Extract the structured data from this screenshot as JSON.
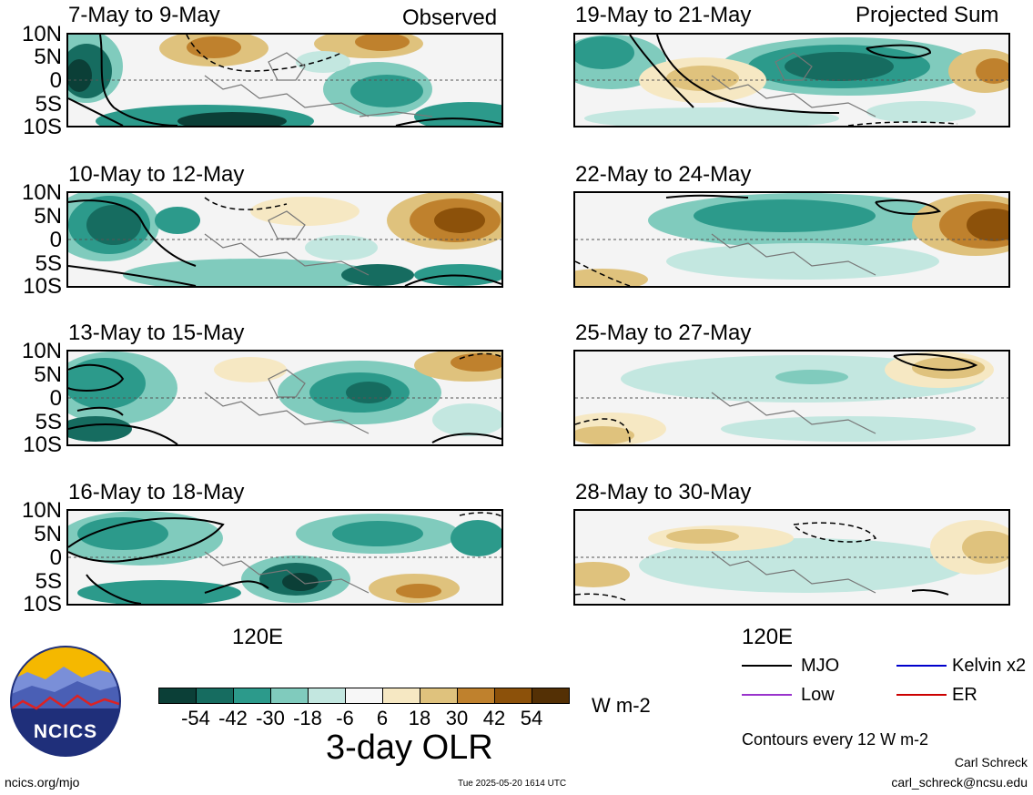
{
  "headers": {
    "observed": "Observed",
    "projected": "Projected Sum"
  },
  "panels": {
    "observed": [
      {
        "title": "7-May to 9-May"
      },
      {
        "title": "10-May to 12-May"
      },
      {
        "title": "13-May to 15-May"
      },
      {
        "title": "16-May to 18-May"
      }
    ],
    "projected": [
      {
        "title": "19-May to 21-May"
      },
      {
        "title": "22-May to 24-May"
      },
      {
        "title": "25-May to 27-May"
      },
      {
        "title": "28-May to 30-May"
      }
    ]
  },
  "lat_labels": [
    "10N",
    "5N",
    "0",
    "5S",
    "10S"
  ],
  "lon_label": "120E",
  "colorbar": {
    "ticks": [
      "-54",
      "-42",
      "-30",
      "-18",
      "-6",
      "6",
      "18",
      "30",
      "42",
      "54"
    ],
    "colors": [
      "#0b3f37",
      "#166c60",
      "#2c9a8b",
      "#80cbbd",
      "#c3e7e0",
      "#f7f7f7",
      "#f6e8c3",
      "#dfc27d",
      "#bf812d",
      "#8c510a",
      "#543005"
    ],
    "units": "W m-2",
    "title": "3-day OLR"
  },
  "legend": {
    "items": [
      {
        "label": "MJO",
        "color": "#000000"
      },
      {
        "label": "Kelvin x2",
        "color": "#0000cc"
      },
      {
        "label": "Low",
        "color": "#9933cc"
      },
      {
        "label": "ER",
        "color": "#cc0000"
      }
    ],
    "note": "Contours every 12 W m-2"
  },
  "credits": {
    "author": "Carl Schreck",
    "email": "carl_schreck@ncsu.edu",
    "url": "ncics.org/mjo",
    "timestamp": "Tue 2025-05-20 1614 UTC"
  },
  "logo": {
    "text": "NCICS"
  }
}
